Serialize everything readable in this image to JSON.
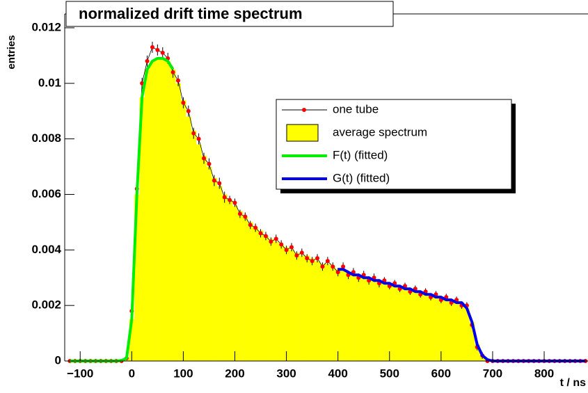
{
  "chart_data": {
    "type": "spectrum",
    "title": "normalized drift time spectrum",
    "xlabel": "t / ns",
    "ylabel": "entries",
    "xlim": [
      -130,
      885
    ],
    "ylim": [
      0,
      0.0125
    ],
    "xticks": [
      {
        "value": -100,
        "label": "−100"
      },
      0,
      100,
      200,
      300,
      400,
      500,
      600,
      700,
      800
    ],
    "yticks": [
      0,
      0.002,
      0.004,
      0.006,
      0.008,
      0.01,
      0.012
    ],
    "x": [
      -120,
      -110,
      -100,
      -90,
      -80,
      -70,
      -60,
      -50,
      -40,
      -30,
      -20,
      -10,
      0,
      10,
      20,
      30,
      40,
      50,
      60,
      70,
      80,
      90,
      100,
      110,
      120,
      130,
      140,
      150,
      160,
      170,
      180,
      190,
      200,
      210,
      220,
      230,
      240,
      250,
      260,
      270,
      280,
      290,
      300,
      310,
      320,
      330,
      340,
      350,
      360,
      370,
      380,
      390,
      400,
      410,
      420,
      430,
      440,
      450,
      460,
      470,
      480,
      490,
      500,
      510,
      520,
      530,
      540,
      550,
      560,
      570,
      580,
      590,
      600,
      610,
      620,
      630,
      640,
      650,
      660,
      670,
      680,
      690,
      700,
      710,
      720,
      730,
      740,
      750,
      760,
      770,
      780,
      790,
      800,
      810,
      820,
      830,
      840,
      850,
      860,
      870,
      880
    ],
    "series": [
      {
        "name": "one tube",
        "kind": "points",
        "color": "#ff0000",
        "values": [
          0,
          0,
          0,
          0,
          0,
          0,
          0,
          0,
          0,
          0,
          0,
          0.0001,
          0.0018,
          0.0062,
          0.01,
          0.0108,
          0.0113,
          0.0112,
          0.0111,
          0.0109,
          0.0104,
          0.0101,
          0.0093,
          0.009,
          0.0082,
          0.008,
          0.0073,
          0.0071,
          0.0065,
          0.0064,
          0.0059,
          0.0058,
          0.0057,
          0.0053,
          0.0052,
          0.0049,
          0.0048,
          0.0046,
          0.0045,
          0.0043,
          0.0044,
          0.0042,
          0.004,
          0.0041,
          0.0038,
          0.0039,
          0.0037,
          0.0036,
          0.0037,
          0.0034,
          0.0036,
          0.0034,
          0.0032,
          0.0034,
          0.0031,
          0.0032,
          0.003,
          0.0031,
          0.0029,
          0.003,
          0.0028,
          0.0029,
          0.0027,
          0.0028,
          0.0026,
          0.0027,
          0.0025,
          0.0026,
          0.0024,
          0.0025,
          0.0023,
          0.0024,
          0.0022,
          0.0023,
          0.0021,
          0.0022,
          0.002,
          0.002,
          0.0013,
          0.0005,
          0.0002,
          0,
          0,
          0,
          0,
          0,
          0,
          0,
          0,
          0,
          0,
          0,
          0,
          0,
          0,
          0,
          0,
          0,
          0,
          0,
          0
        ],
        "errors": [
          0,
          0,
          0,
          0,
          0,
          0,
          0,
          0,
          0,
          0,
          0,
          5e-05,
          0.0002,
          0.0002,
          0.0002,
          0.0002,
          0.0002,
          0.0002,
          0.0002,
          0.0002,
          0.0002,
          0.0002,
          0.0002,
          0.0002,
          0.0002,
          0.0002,
          0.0002,
          0.0002,
          0.0002,
          0.0002,
          0.0002,
          0.00015,
          0.00015,
          0.00015,
          0.00015,
          0.00015,
          0.00015,
          0.00015,
          0.00015,
          0.00015,
          0.00015,
          0.00015,
          0.00015,
          0.00015,
          0.00015,
          0.00015,
          0.00015,
          0.00015,
          0.00015,
          0.00015,
          0.00015,
          0.00015,
          0.00015,
          0.00015,
          0.00015,
          0.00015,
          0.00015,
          0.00015,
          0.00015,
          0.00015,
          0.00015,
          0.00012,
          0.00012,
          0.00012,
          0.00012,
          0.00012,
          0.00012,
          0.00012,
          0.00012,
          0.00012,
          0.00012,
          0.00012,
          0.00012,
          0.00012,
          0.00012,
          0.00012,
          0.00012,
          0.00012,
          0.00012,
          0.00012,
          0.00012,
          0,
          0,
          0,
          0,
          0,
          0,
          0,
          0,
          0,
          0,
          0,
          0,
          0,
          0,
          0,
          0,
          0,
          0,
          0,
          0
        ]
      },
      {
        "name": "average spectrum",
        "kind": "histogram",
        "color": "#ffff00",
        "values": [
          0,
          0,
          0,
          0,
          0,
          0,
          0,
          0,
          0,
          0,
          2e-05,
          0.0001,
          0.0015,
          0.006,
          0.0095,
          0.0105,
          0.0108,
          0.0109,
          0.0109,
          0.0108,
          0.0105,
          0.01,
          0.0094,
          0.0088,
          0.0083,
          0.0078,
          0.0074,
          0.007,
          0.0066,
          0.0063,
          0.006,
          0.0058,
          0.0056,
          0.0054,
          0.0052,
          0.005,
          0.0048,
          0.0047,
          0.0045,
          0.0044,
          0.0043,
          0.0042,
          0.0041,
          0.004,
          0.0039,
          0.0038,
          0.0038,
          0.0037,
          0.0036,
          0.0035,
          0.0035,
          0.0034,
          0.0033,
          0.0033,
          0.0032,
          0.0031,
          0.0031,
          0.003,
          0.003,
          0.0029,
          0.0029,
          0.0028,
          0.0028,
          0.0027,
          0.0027,
          0.0026,
          0.0026,
          0.0025,
          0.0025,
          0.0024,
          0.0024,
          0.0023,
          0.0023,
          0.0022,
          0.0022,
          0.0021,
          0.0021,
          0.0019,
          0.0014,
          0.0006,
          0.0002,
          5e-05,
          0,
          0,
          0,
          0,
          0,
          0,
          0,
          0,
          0,
          0,
          0,
          0,
          0,
          0,
          0,
          0,
          0,
          0,
          0
        ]
      },
      {
        "name": "F(t) (fitted)",
        "kind": "curve",
        "color": "#00ee00",
        "values": [
          0,
          0,
          0,
          0,
          0,
          0,
          0,
          0,
          0,
          0,
          2e-05,
          0.0001,
          0.0015,
          0.006,
          0.0095,
          0.0105,
          0.0108,
          0.0109,
          0.0109,
          0.0108,
          0.0105,
          null,
          null,
          null,
          null,
          null,
          null,
          null,
          null,
          null,
          null,
          null,
          null,
          null,
          null,
          null,
          null,
          null,
          null,
          null,
          null,
          null,
          null,
          null,
          null,
          null,
          null,
          null,
          null,
          null,
          null,
          null,
          null,
          null,
          null,
          null,
          null,
          null,
          null,
          null,
          null,
          null,
          null,
          null,
          null,
          null,
          null,
          null,
          null,
          null,
          null,
          null,
          null,
          null,
          null,
          null,
          null,
          null,
          null,
          null,
          null,
          null,
          null,
          null,
          null,
          null,
          null,
          null,
          null,
          null,
          null,
          null,
          null,
          null,
          null,
          null,
          null,
          null,
          null,
          null,
          null
        ]
      },
      {
        "name": "G(t) (fitted)",
        "kind": "curve",
        "color": "#0000ee",
        "values": [
          null,
          null,
          null,
          null,
          null,
          null,
          null,
          null,
          null,
          null,
          null,
          null,
          null,
          null,
          null,
          null,
          null,
          null,
          null,
          null,
          null,
          null,
          null,
          null,
          null,
          null,
          null,
          null,
          null,
          null,
          null,
          null,
          null,
          null,
          null,
          null,
          null,
          null,
          null,
          null,
          null,
          null,
          null,
          null,
          null,
          null,
          null,
          null,
          null,
          null,
          null,
          null,
          0.0033,
          0.0033,
          0.0032,
          0.0031,
          0.0031,
          0.003,
          0.003,
          0.0029,
          0.0029,
          0.0028,
          0.0028,
          0.0027,
          0.0027,
          0.0026,
          0.0026,
          0.0025,
          0.0025,
          0.0024,
          0.0024,
          0.0023,
          0.0023,
          0.0022,
          0.0022,
          0.0021,
          0.0021,
          0.0019,
          0.0014,
          0.0006,
          0.0002,
          5e-05,
          0,
          0,
          0,
          0,
          0,
          0,
          0,
          0,
          0,
          0,
          0,
          0,
          0,
          0,
          0,
          0,
          0,
          0,
          0
        ]
      }
    ]
  }
}
